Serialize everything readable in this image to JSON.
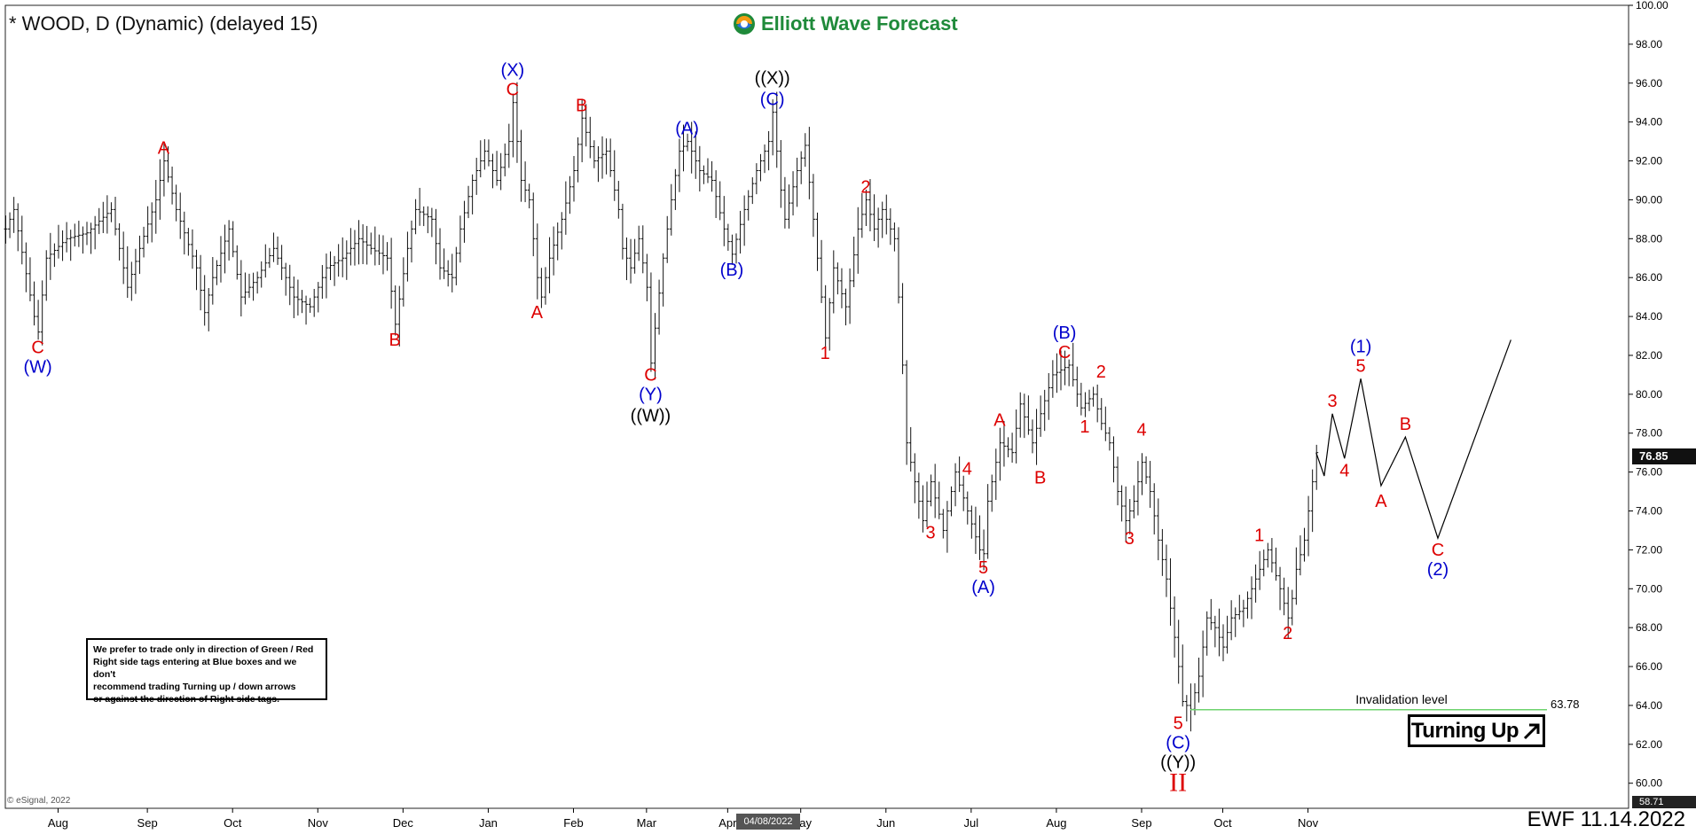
{
  "header": {
    "title": "* WOOD, D (Dynamic) (delayed 15)",
    "brand": "Elliott Wave Forecast"
  },
  "disclaimer": {
    "lines": [
      "We prefer to trade only in direction of Green / Red",
      "Right side tags entering at Blue boxes and we don't",
      "recommend trading Turning up / down arrows",
      "or against the direction of Right side tags."
    ]
  },
  "turning_badge": {
    "label": "Turning Up",
    "arrow": "north-east-arrow"
  },
  "footer": {
    "ewf_date": "EWF 11.14.2022",
    "esignal": "© eSignal, 2022",
    "cursor_date": "04/08/2022"
  },
  "price_tags": {
    "last": "76.85",
    "low": "58.71"
  },
  "invalidation": {
    "label": "Invalidation level",
    "value": 63.78,
    "value_text": "63.78",
    "color": "#6fd36f"
  },
  "colors": {
    "red": "#dd0000",
    "blue": "#0000cc",
    "black": "#000000",
    "green": "#1f8a3a"
  },
  "chart_data": {
    "type": "line",
    "style": "ohlc-bars",
    "ylim": [
      58.71,
      100
    ],
    "y_ticks": [
      100,
      98,
      96,
      94,
      92,
      90,
      88,
      86,
      84,
      82,
      80,
      78,
      76,
      74,
      72,
      70,
      68,
      66,
      64,
      62,
      60
    ],
    "x_labels": [
      "Aug",
      "Sep",
      "Oct",
      "Nov",
      "Dec",
      "Jan",
      "Feb",
      "Mar",
      "Apr",
      "May",
      "Jun",
      "Jul",
      "Aug",
      "Sep",
      "Oct",
      "Nov"
    ],
    "x_label_slots": [
      13,
      35,
      56,
      77,
      98,
      119,
      140,
      158,
      178,
      196,
      217,
      238,
      259,
      280,
      300,
      321
    ],
    "total_slots": 400,
    "price_path": [
      [
        0,
        88.5
      ],
      [
        2,
        89.5
      ],
      [
        7,
        84.0
      ],
      [
        8,
        83.2
      ],
      [
        10,
        87.0
      ],
      [
        15,
        88.0
      ],
      [
        20,
        88.3
      ],
      [
        26,
        89.5
      ],
      [
        30,
        85.5
      ],
      [
        33,
        87.5
      ],
      [
        37,
        90.0
      ],
      [
        39,
        92.0
      ],
      [
        42,
        89.5
      ],
      [
        47,
        86.5
      ],
      [
        49,
        84.2
      ],
      [
        51,
        86.0
      ],
      [
        55,
        88.5
      ],
      [
        58,
        85.0
      ],
      [
        62,
        86.0
      ],
      [
        66,
        87.5
      ],
      [
        71,
        85.0
      ],
      [
        75,
        84.5
      ],
      [
        79,
        86.5
      ],
      [
        83,
        87.0
      ],
      [
        87,
        88.0
      ],
      [
        90,
        87.5
      ],
      [
        94,
        87.0
      ],
      [
        96,
        83.6
      ],
      [
        99,
        87.5
      ],
      [
        101,
        89.5
      ],
      [
        105,
        89.0
      ],
      [
        107,
        86.5
      ],
      [
        110,
        86.0
      ],
      [
        112,
        88.5
      ],
      [
        115,
        91.0
      ],
      [
        118,
        92.5
      ],
      [
        121,
        91.0
      ],
      [
        124,
        93.0
      ],
      [
        125,
        95.0
      ],
      [
        127,
        91.0
      ],
      [
        129,
        90.0
      ],
      [
        130,
        88.0
      ],
      [
        131,
        86.0
      ],
      [
        132,
        85.0
      ],
      [
        134,
        87.0
      ],
      [
        137,
        89.0
      ],
      [
        140,
        91.5
      ],
      [
        142,
        94.2
      ],
      [
        145,
        92.0
      ],
      [
        148,
        92.5
      ],
      [
        151,
        89.5
      ],
      [
        152,
        87.5
      ],
      [
        154,
        86.5
      ],
      [
        156,
        88.0
      ],
      [
        158,
        85.5
      ],
      [
        159,
        81.6
      ],
      [
        162,
        87.0
      ],
      [
        164,
        90.0
      ],
      [
        166,
        92.5
      ],
      [
        168,
        93.0
      ],
      [
        171,
        91.5
      ],
      [
        174,
        91.0
      ],
      [
        177,
        88.5
      ],
      [
        179,
        87.2
      ],
      [
        182,
        89.5
      ],
      [
        185,
        91.5
      ],
      [
        188,
        93.0
      ],
      [
        189,
        94.5
      ],
      [
        191,
        90.5
      ],
      [
        192,
        89.0
      ],
      [
        195,
        91.5
      ],
      [
        197,
        92.8
      ],
      [
        199,
        89.0
      ],
      [
        201,
        85.0
      ],
      [
        202,
        82.9
      ],
      [
        204,
        86.5
      ],
      [
        207,
        84.5
      ],
      [
        210,
        88.5
      ],
      [
        212,
        90.0
      ],
      [
        214,
        88.5
      ],
      [
        216,
        89.5
      ],
      [
        219,
        88.0
      ],
      [
        220,
        85.0
      ],
      [
        221,
        81.5
      ],
      [
        222,
        77.5
      ],
      [
        224,
        75.5
      ],
      [
        226,
        73.5
      ],
      [
        228,
        75.5
      ],
      [
        231,
        73.0
      ],
      [
        234,
        76.0
      ],
      [
        237,
        74.0
      ],
      [
        240,
        72.0
      ],
      [
        241,
        71.8
      ],
      [
        242,
        74.5
      ],
      [
        245,
        77.5
      ],
      [
        248,
        77.0
      ],
      [
        250,
        79.5
      ],
      [
        253,
        77.5
      ],
      [
        255,
        79.0
      ],
      [
        258,
        81.0
      ],
      [
        262,
        81.5
      ],
      [
        264,
        80.0
      ],
      [
        265,
        79.3
      ],
      [
        268,
        80.0
      ],
      [
        270,
        78.5
      ],
      [
        272,
        77.5
      ],
      [
        274,
        75.0
      ],
      [
        276,
        73.5
      ],
      [
        278,
        74.5
      ],
      [
        280,
        76.5
      ],
      [
        282,
        75.0
      ],
      [
        284,
        72.5
      ],
      [
        286,
        70.5
      ],
      [
        288,
        67.5
      ],
      [
        289,
        66.0
      ],
      [
        290,
        64.2
      ],
      [
        292,
        63.8
      ],
      [
        294,
        65.5
      ],
      [
        296,
        68.5
      ],
      [
        298,
        68.0
      ],
      [
        300,
        67.0
      ],
      [
        302,
        68.5
      ],
      [
        305,
        69.0
      ],
      [
        308,
        70.5
      ],
      [
        311,
        72.0
      ],
      [
        314,
        70.0
      ],
      [
        316,
        68.5
      ],
      [
        317,
        69.5
      ],
      [
        318,
        71.0
      ],
      [
        320,
        72.5
      ],
      [
        322,
        75.5
      ],
      [
        323,
        77.0
      ]
    ],
    "projection": [
      [
        323,
        77.0
      ],
      [
        325,
        75.8
      ],
      [
        327,
        79.0
      ],
      [
        330,
        76.7
      ],
      [
        334,
        80.8
      ],
      [
        339,
        75.3
      ],
      [
        345,
        77.8
      ],
      [
        353,
        72.6
      ],
      [
        371,
        82.8
      ]
    ],
    "wave_labels": [
      {
        "text": "C",
        "x": 8,
        "y": 83.2,
        "color": "red",
        "pos": "below",
        "off": 8
      },
      {
        "text": "(W)",
        "x": 8,
        "y": 83.2,
        "color": "blue",
        "pos": "below",
        "off": 30
      },
      {
        "text": "A",
        "x": 39,
        "y": 92.0,
        "color": "red",
        "pos": "above",
        "off": 4
      },
      {
        "text": "B",
        "x": 96,
        "y": 83.6,
        "color": "red",
        "pos": "below",
        "off": 8
      },
      {
        "text": "C",
        "x": 125,
        "y": 95.0,
        "color": "red",
        "pos": "above",
        "off": 4
      },
      {
        "text": "(X)",
        "x": 125,
        "y": 95.0,
        "color": "blue",
        "pos": "above",
        "off": 26
      },
      {
        "text": "A",
        "x": 131,
        "y": 85.0,
        "color": "red",
        "pos": "below",
        "off": 8
      },
      {
        "text": "B",
        "x": 142,
        "y": 94.2,
        "color": "red",
        "pos": "above",
        "off": 4
      },
      {
        "text": "C",
        "x": 159,
        "y": 81.6,
        "color": "red",
        "pos": "below",
        "off": 4
      },
      {
        "text": "(Y)",
        "x": 159,
        "y": 81.6,
        "color": "blue",
        "pos": "below",
        "off": 26
      },
      {
        "text": "((W))",
        "x": 159,
        "y": 81.6,
        "color": "black",
        "pos": "below",
        "off": 50
      },
      {
        "text": "(A)",
        "x": 168,
        "y": 93.0,
        "color": "blue",
        "pos": "above",
        "off": 4
      },
      {
        "text": "(B)",
        "x": 179,
        "y": 87.2,
        "color": "blue",
        "pos": "below",
        "off": 8
      },
      {
        "text": "(C)",
        "x": 189,
        "y": 94.5,
        "color": "blue",
        "pos": "above",
        "off": 4
      },
      {
        "text": "((X))",
        "x": 189,
        "y": 94.5,
        "color": "black",
        "pos": "above",
        "off": 28
      },
      {
        "text": "1",
        "x": 202,
        "y": 82.9,
        "color": "red",
        "pos": "below",
        "off": 8
      },
      {
        "text": "2",
        "x": 212,
        "y": 90.0,
        "color": "red",
        "pos": "above",
        "off": 4
      },
      {
        "text": "3",
        "x": 228,
        "y": 73.5,
        "color": "red",
        "pos": "below",
        "off": 4
      },
      {
        "text": "4",
        "x": 237,
        "y": 75.5,
        "color": "red",
        "pos": "above",
        "off": 4
      },
      {
        "text": "5",
        "x": 241,
        "y": 71.8,
        "color": "red",
        "pos": "below",
        "off": 6
      },
      {
        "text": "(A)",
        "x": 241,
        "y": 71.8,
        "color": "blue",
        "pos": "below",
        "off": 28
      },
      {
        "text": "A",
        "x": 245,
        "y": 78.0,
        "color": "red",
        "pos": "above",
        "off": 4
      },
      {
        "text": "B",
        "x": 255,
        "y": 76.5,
        "color": "red",
        "pos": "below",
        "off": 8
      },
      {
        "text": "C",
        "x": 261,
        "y": 81.5,
        "color": "red",
        "pos": "above",
        "off": 4
      },
      {
        "text": "(B)",
        "x": 261,
        "y": 81.5,
        "color": "blue",
        "pos": "above",
        "off": 26
      },
      {
        "text": "1",
        "x": 266,
        "y": 79.3,
        "color": "red",
        "pos": "below",
        "off": 12
      },
      {
        "text": "2",
        "x": 270,
        "y": 80.5,
        "color": "red",
        "pos": "above",
        "off": 4
      },
      {
        "text": "3",
        "x": 277,
        "y": 73.2,
        "color": "red",
        "pos": "below",
        "off": 4
      },
      {
        "text": "4",
        "x": 280,
        "y": 77.5,
        "color": "red",
        "pos": "above",
        "off": 4
      },
      {
        "text": "5",
        "x": 289,
        "y": 63.8,
        "color": "red",
        "pos": "below",
        "off": 6
      },
      {
        "text": "(C)",
        "x": 289,
        "y": 63.8,
        "color": "blue",
        "pos": "below",
        "off": 28
      },
      {
        "text": "((Y))",
        "x": 289,
        "y": 63.8,
        "color": "black",
        "pos": "below",
        "off": 50
      },
      {
        "text": "II",
        "x": 289,
        "y": 63.8,
        "color": "red",
        "pos": "below",
        "off": 76
      },
      {
        "text": "1",
        "x": 309,
        "y": 72.0,
        "color": "red",
        "pos": "above",
        "off": 6
      },
      {
        "text": "2",
        "x": 316,
        "y": 68.5,
        "color": "red",
        "pos": "below",
        "off": 8
      },
      {
        "text": "3",
        "x": 327,
        "y": 79.0,
        "color": "red",
        "pos": "above",
        "off": 4
      },
      {
        "text": "4",
        "x": 330,
        "y": 76.7,
        "color": "red",
        "pos": "below",
        "off": 4
      },
      {
        "text": "5",
        "x": 334,
        "y": 80.8,
        "color": "red",
        "pos": "above",
        "off": 4
      },
      {
        "text": "(1)",
        "x": 334,
        "y": 80.8,
        "color": "blue",
        "pos": "above",
        "off": 26
      },
      {
        "text": "A",
        "x": 339,
        "y": 75.3,
        "color": "red",
        "pos": "below",
        "off": 8
      },
      {
        "text": "B",
        "x": 345,
        "y": 77.8,
        "color": "red",
        "pos": "above",
        "off": 4
      },
      {
        "text": "C",
        "x": 353,
        "y": 72.6,
        "color": "red",
        "pos": "below",
        "off": 4
      },
      {
        "text": "(2)",
        "x": 353,
        "y": 72.6,
        "color": "blue",
        "pos": "below",
        "off": 26
      }
    ]
  }
}
